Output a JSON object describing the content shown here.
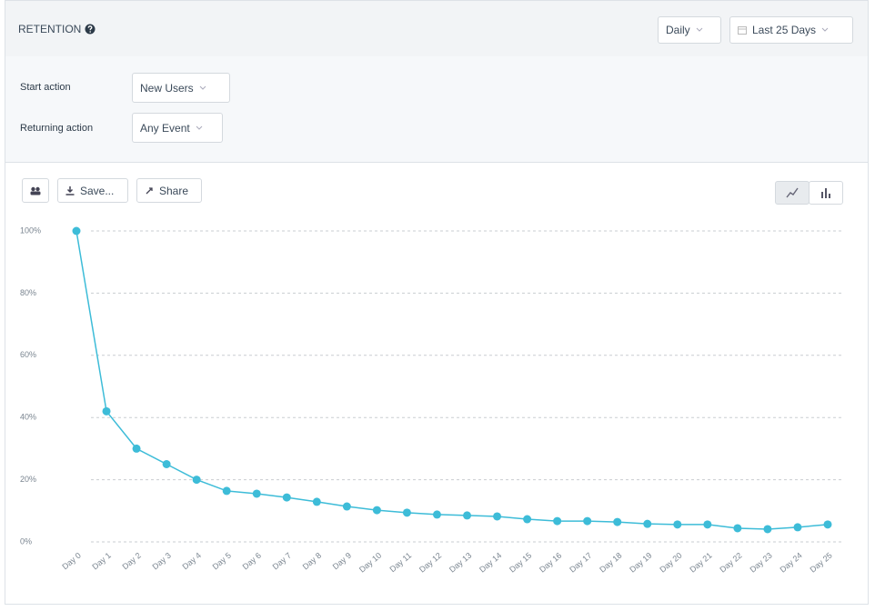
{
  "header": {
    "title": "RETENTION",
    "interval": "Daily",
    "range": "Last 25 Days"
  },
  "controls": {
    "start_label": "Start action",
    "start_value": "New Users",
    "return_label": "Returning action",
    "return_value": "Any Event"
  },
  "toolbar": {
    "save": "Save...",
    "share": "Share"
  },
  "chart_data": {
    "type": "line",
    "categories": [
      "Day 0",
      "Day 1",
      "Day 2",
      "Day 3",
      "Day 4",
      "Day 5",
      "Day 6",
      "Day 7",
      "Day 8",
      "Day 9",
      "Day 10",
      "Day 11",
      "Day 12",
      "Day 13",
      "Day 14",
      "Day 15",
      "Day 16",
      "Day 17",
      "Day 18",
      "Day 19",
      "Day 20",
      "Day 21",
      "Day 22",
      "Day 23",
      "Day 24",
      "Day 25"
    ],
    "values": [
      100,
      42,
      30,
      25,
      20,
      16.4,
      15.5,
      14.3,
      12.9,
      11.4,
      10.2,
      9.4,
      8.8,
      8.5,
      8.2,
      7.3,
      6.7,
      6.7,
      6.4,
      5.8,
      5.6,
      5.6,
      4.4,
      4.1,
      4.7,
      5.6
    ],
    "color": "#3dbcd8",
    "ylim": [
      0,
      100
    ],
    "yticks": [
      {
        "value": 0,
        "label": "0%"
      },
      {
        "value": 20,
        "label": "20%"
      },
      {
        "value": 40,
        "label": "40%"
      },
      {
        "value": 60,
        "label": "60%"
      },
      {
        "value": 80,
        "label": "80%"
      },
      {
        "value": 100,
        "label": "100%"
      }
    ],
    "grid": true
  }
}
